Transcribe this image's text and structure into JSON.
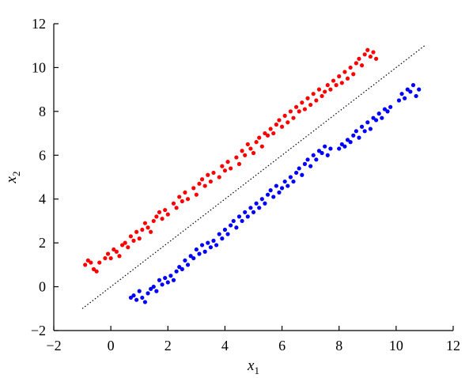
{
  "chart_data": {
    "type": "scatter",
    "title": "",
    "xlabel": {
      "base": "x",
      "sub": "1"
    },
    "ylabel": {
      "base": "x",
      "sub": "2"
    },
    "xlim": [
      -2,
      12
    ],
    "ylim": [
      -2,
      12
    ],
    "xticks": [
      -2,
      0,
      2,
      4,
      6,
      8,
      10,
      12
    ],
    "yticks": [
      -2,
      0,
      2,
      4,
      6,
      8,
      10,
      12
    ],
    "xtick_labels": [
      "−2",
      "0",
      "2",
      "4",
      "6",
      "8",
      "10",
      "12"
    ],
    "ytick_labels": [
      "−2",
      "0",
      "2",
      "4",
      "6",
      "8",
      "10",
      "12"
    ],
    "grid": false,
    "legend": "none",
    "series": [
      {
        "color": "#ff0000",
        "points": [
          [
            -0.9,
            1.0
          ],
          [
            -0.8,
            1.2
          ],
          [
            -0.7,
            1.1
          ],
          [
            -0.6,
            0.8
          ],
          [
            -0.5,
            0.7
          ],
          [
            -0.4,
            1.1
          ],
          [
            -0.2,
            1.3
          ],
          [
            -0.1,
            1.5
          ],
          [
            0.0,
            1.3
          ],
          [
            0.1,
            1.7
          ],
          [
            0.2,
            1.6
          ],
          [
            0.3,
            1.4
          ],
          [
            0.4,
            1.9
          ],
          [
            0.5,
            2.0
          ],
          [
            0.6,
            1.8
          ],
          [
            0.7,
            2.3
          ],
          [
            0.8,
            2.1
          ],
          [
            0.9,
            2.5
          ],
          [
            1.0,
            2.2
          ],
          [
            1.1,
            2.6
          ],
          [
            1.2,
            2.9
          ],
          [
            1.3,
            2.7
          ],
          [
            1.4,
            2.5
          ],
          [
            1.5,
            3.0
          ],
          [
            1.6,
            3.2
          ],
          [
            1.7,
            3.4
          ],
          [
            1.8,
            3.1
          ],
          [
            1.9,
            3.5
          ],
          [
            2.0,
            3.3
          ],
          [
            2.2,
            3.8
          ],
          [
            2.3,
            3.6
          ],
          [
            2.4,
            4.1
          ],
          [
            2.5,
            3.9
          ],
          [
            2.6,
            4.3
          ],
          [
            2.7,
            4.0
          ],
          [
            2.9,
            4.5
          ],
          [
            3.0,
            4.2
          ],
          [
            3.1,
            4.7
          ],
          [
            3.2,
            4.9
          ],
          [
            3.3,
            4.6
          ],
          [
            3.4,
            5.1
          ],
          [
            3.5,
            4.8
          ],
          [
            3.6,
            5.2
          ],
          [
            3.8,
            5.0
          ],
          [
            3.9,
            5.5
          ],
          [
            4.0,
            5.3
          ],
          [
            4.1,
            5.7
          ],
          [
            4.2,
            5.4
          ],
          [
            4.4,
            5.9
          ],
          [
            4.5,
            5.6
          ],
          [
            4.6,
            6.2
          ],
          [
            4.7,
            6.0
          ],
          [
            4.8,
            6.5
          ],
          [
            4.9,
            6.3
          ],
          [
            5.0,
            6.1
          ],
          [
            5.1,
            6.6
          ],
          [
            5.2,
            6.8
          ],
          [
            5.3,
            6.4
          ],
          [
            5.4,
            7.0
          ],
          [
            5.5,
            6.9
          ],
          [
            5.6,
            7.2
          ],
          [
            5.7,
            7.0
          ],
          [
            5.8,
            7.4
          ],
          [
            5.9,
            7.6
          ],
          [
            6.0,
            7.3
          ],
          [
            6.1,
            7.8
          ],
          [
            6.2,
            7.5
          ],
          [
            6.3,
            8.0
          ],
          [
            6.4,
            7.7
          ],
          [
            6.5,
            8.2
          ],
          [
            6.6,
            8.0
          ],
          [
            6.7,
            8.4
          ],
          [
            6.8,
            8.1
          ],
          [
            6.9,
            8.6
          ],
          [
            7.0,
            8.3
          ],
          [
            7.1,
            8.8
          ],
          [
            7.2,
            8.5
          ],
          [
            7.3,
            9.0
          ],
          [
            7.4,
            8.7
          ],
          [
            7.5,
            8.9
          ],
          [
            7.6,
            9.2
          ],
          [
            7.7,
            9.0
          ],
          [
            7.8,
            9.4
          ],
          [
            7.9,
            9.2
          ],
          [
            8.0,
            9.6
          ],
          [
            8.1,
            9.3
          ],
          [
            8.2,
            9.8
          ],
          [
            8.3,
            9.5
          ],
          [
            8.4,
            10.0
          ],
          [
            8.5,
            9.7
          ],
          [
            8.6,
            10.2
          ],
          [
            8.7,
            10.4
          ],
          [
            8.8,
            10.1
          ],
          [
            8.9,
            10.6
          ],
          [
            9.0,
            10.8
          ],
          [
            9.1,
            10.5
          ],
          [
            9.2,
            10.7
          ],
          [
            9.3,
            10.4
          ]
        ]
      },
      {
        "color": "#0000ff",
        "points": [
          [
            0.7,
            -0.5
          ],
          [
            0.8,
            -0.4
          ],
          [
            0.9,
            -0.6
          ],
          [
            1.0,
            -0.2
          ],
          [
            1.1,
            -0.5
          ],
          [
            1.2,
            -0.7
          ],
          [
            1.3,
            -0.3
          ],
          [
            1.4,
            -0.1
          ],
          [
            1.5,
            0.0
          ],
          [
            1.6,
            -0.2
          ],
          [
            1.7,
            0.3
          ],
          [
            1.8,
            0.1
          ],
          [
            1.9,
            0.4
          ],
          [
            2.0,
            0.2
          ],
          [
            2.1,
            0.5
          ],
          [
            2.2,
            0.3
          ],
          [
            2.3,
            0.7
          ],
          [
            2.4,
            0.9
          ],
          [
            2.5,
            0.8
          ],
          [
            2.6,
            1.2
          ],
          [
            2.7,
            1.0
          ],
          [
            2.8,
            1.4
          ],
          [
            2.9,
            1.3
          ],
          [
            3.0,
            1.7
          ],
          [
            3.1,
            1.5
          ],
          [
            3.2,
            1.9
          ],
          [
            3.3,
            1.6
          ],
          [
            3.4,
            2.0
          ],
          [
            3.5,
            1.8
          ],
          [
            3.6,
            2.1
          ],
          [
            3.7,
            1.9
          ],
          [
            3.8,
            2.4
          ],
          [
            3.9,
            2.2
          ],
          [
            4.0,
            2.6
          ],
          [
            4.1,
            2.4
          ],
          [
            4.2,
            2.8
          ],
          [
            4.3,
            3.0
          ],
          [
            4.4,
            2.7
          ],
          [
            4.5,
            3.2
          ],
          [
            4.6,
            3.0
          ],
          [
            4.7,
            3.4
          ],
          [
            4.8,
            3.2
          ],
          [
            4.9,
            3.6
          ],
          [
            5.0,
            3.4
          ],
          [
            5.1,
            3.8
          ],
          [
            5.2,
            3.6
          ],
          [
            5.3,
            4.0
          ],
          [
            5.4,
            3.8
          ],
          [
            5.5,
            4.2
          ],
          [
            5.6,
            4.4
          ],
          [
            5.7,
            4.1
          ],
          [
            5.8,
            4.6
          ],
          [
            5.9,
            4.3
          ],
          [
            6.0,
            4.5
          ],
          [
            6.1,
            4.8
          ],
          [
            6.2,
            4.6
          ],
          [
            6.3,
            5.0
          ],
          [
            6.4,
            4.8
          ],
          [
            6.5,
            5.2
          ],
          [
            6.6,
            5.4
          ],
          [
            6.7,
            5.1
          ],
          [
            6.8,
            5.6
          ],
          [
            6.9,
            5.8
          ],
          [
            7.0,
            5.5
          ],
          [
            7.1,
            6.0
          ],
          [
            7.2,
            5.8
          ],
          [
            7.3,
            6.2
          ],
          [
            7.4,
            6.1
          ],
          [
            7.5,
            6.4
          ],
          [
            7.6,
            6.0
          ],
          [
            7.7,
            6.3
          ],
          [
            8.0,
            6.3
          ],
          [
            8.1,
            6.5
          ],
          [
            8.2,
            6.4
          ],
          [
            8.3,
            6.7
          ],
          [
            8.4,
            6.6
          ],
          [
            8.5,
            6.9
          ],
          [
            8.6,
            7.1
          ],
          [
            8.7,
            6.8
          ],
          [
            8.8,
            7.3
          ],
          [
            8.9,
            7.1
          ],
          [
            9.0,
            7.5
          ],
          [
            9.1,
            7.2
          ],
          [
            9.2,
            7.7
          ],
          [
            9.3,
            7.6
          ],
          [
            9.4,
            7.9
          ],
          [
            9.5,
            7.7
          ],
          [
            9.6,
            8.1
          ],
          [
            9.7,
            8.0
          ],
          [
            9.8,
            8.2
          ],
          [
            10.1,
            8.5
          ],
          [
            10.2,
            8.8
          ],
          [
            10.3,
            8.6
          ],
          [
            10.4,
            9.0
          ],
          [
            10.5,
            8.9
          ],
          [
            10.6,
            9.2
          ],
          [
            10.7,
            8.7
          ],
          [
            10.8,
            9.0
          ]
        ]
      }
    ],
    "reference_line": {
      "style": "dotted",
      "color": "#000000",
      "points": [
        [
          -1,
          -1
        ],
        [
          11,
          11
        ]
      ]
    }
  }
}
